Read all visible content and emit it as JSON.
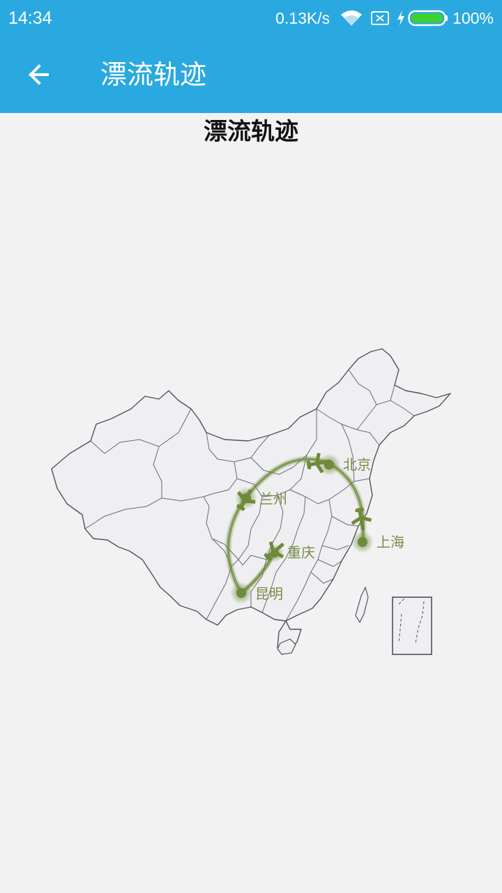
{
  "status_bar": {
    "time": "14:34",
    "net_speed": "0.13K/s",
    "battery_percent": "100%",
    "icons": [
      "wifi-icon",
      "no-sim-icon",
      "charging-icon",
      "battery-icon"
    ]
  },
  "app_bar": {
    "back_icon": "arrow-left-icon",
    "title": "漂流轨迹"
  },
  "page": {
    "heading": "漂流轨迹"
  },
  "map": {
    "route_color": "#6e8a3a",
    "cities": [
      {
        "name": "兰州"
      },
      {
        "name": "北京"
      },
      {
        "name": "上海"
      },
      {
        "name": "重庆"
      },
      {
        "name": "昆明"
      }
    ],
    "route_order": [
      "昆明",
      "兰州",
      "北京",
      "上海"
    ],
    "secondary_route": [
      "昆明",
      "重庆"
    ]
  },
  "colors": {
    "primary": "#2aa9e0",
    "background": "#f2f2f2",
    "map_fill": "#efeff1",
    "map_stroke": "#4a5360",
    "accent_green": "#6e8a3a"
  }
}
